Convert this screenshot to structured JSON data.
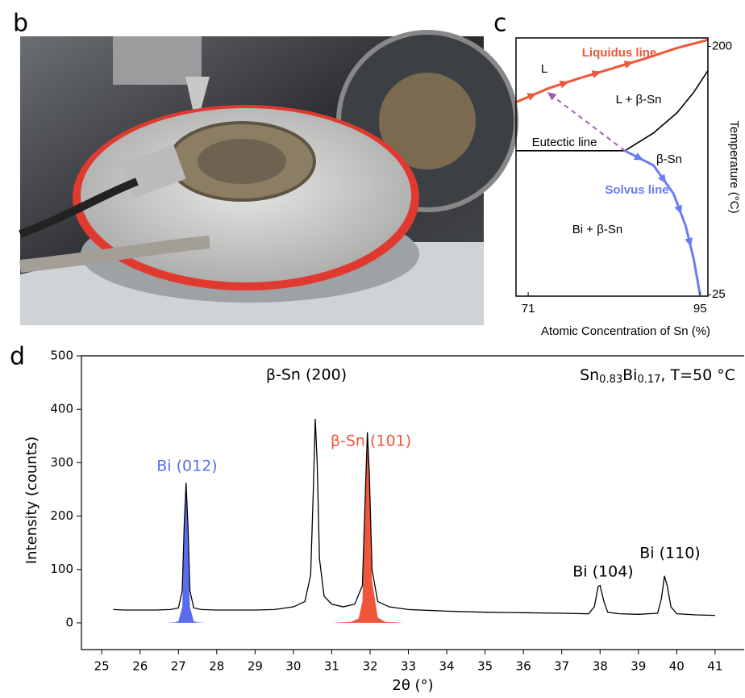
{
  "panel_labels": [
    "b",
    "c",
    "d"
  ],
  "chart_data": [
    {
      "type": "line",
      "xlabel": "Atomic Concentration of Sn (%)",
      "ylabel": "Temperature (°C)",
      "xlim": [
        69.3,
        96.1
      ],
      "ylim": [
        24,
        206
      ],
      "xticks": [
        71,
        95
      ],
      "yticks": [
        25,
        200
      ],
      "regions": [
        "L",
        "L + β-Sn",
        "β-Sn",
        "Bi + β-Sn"
      ],
      "series": [
        {
          "name": "Liquidus line",
          "color": "#f0563a",
          "x": [
            69.3,
            73.8,
            78.3,
            82.8,
            87.3,
            91.8,
            96.1
          ],
          "values": [
            160.7,
            170.4,
            177.8,
            184.6,
            191.4,
            198.9,
            204.6
          ]
        },
        {
          "color": "#000000",
          "x": [
            84.5,
            88.5,
            91.8,
            94.1,
            96.1
          ],
          "values": [
            126.5,
            139.0,
            153.3,
            167.5,
            182.9
          ]
        },
        {
          "name": "Eutectic line",
          "color": "#000000",
          "x": [
            69.3,
            84.5
          ],
          "values": [
            126.5,
            126.5
          ]
        },
        {
          "name": "Solvus line",
          "color": "#6b7cf2",
          "x": [
            84.5,
            88.5,
            91.3,
            93.0,
            94.1,
            95.0
          ],
          "values": [
            126.5,
            116.2,
            96.2,
            73.4,
            50.6,
            25
          ]
        },
        {
          "color": "#a35db8",
          "dashed": true,
          "x": [
            84.5,
            74.2
          ],
          "values": [
            126.5,
            165.8
          ]
        }
      ]
    },
    {
      "type": "line",
      "xlabel": "2θ (°)",
      "ylabel": "Intensity (counts)",
      "xlim": [
        24.47,
        41.76
      ],
      "ylim": [
        -50,
        500
      ],
      "xticks": [
        25,
        26,
        27,
        28,
        29,
        30,
        31,
        32,
        33,
        34,
        35,
        36,
        37,
        38,
        39,
        40,
        41
      ],
      "yticks": [
        0,
        100,
        200,
        300,
        400,
        500
      ],
      "sample_label": [
        "Sn",
        "0.83",
        "Bi",
        "0.17",
        ", T=50 °C"
      ],
      "annotations": [
        {
          "text": "Bi (012)",
          "color": "#5a6cf0"
        },
        {
          "text": "β-Sn (200)",
          "color": "#000000"
        },
        {
          "text": "β-Sn (101)",
          "color": "#f0563a"
        },
        {
          "text": "Bi (104)",
          "color": "#000000"
        },
        {
          "text": "Bi (110)",
          "color": "#000000"
        }
      ],
      "series": [
        {
          "color": "#000000",
          "x": [
            25.3,
            25.6,
            26.0,
            26.4,
            26.8,
            27.0,
            27.1,
            27.15,
            27.2,
            27.25,
            27.3,
            27.4,
            27.6,
            28.0,
            28.5,
            29.0,
            29.5,
            30.0,
            30.3,
            30.45,
            30.52,
            30.57,
            30.62,
            30.68,
            30.8,
            31.0,
            31.3,
            31.6,
            31.8,
            31.88,
            31.93,
            31.98,
            32.05,
            32.2,
            32.5,
            33.0,
            34.0,
            35.0,
            36.0,
            37.0,
            37.7,
            37.85,
            37.95,
            38.0,
            38.1,
            38.2,
            38.5,
            39.0,
            39.5,
            39.6,
            39.68,
            39.75,
            39.85,
            40.0,
            40.5,
            41.0
          ],
          "values": [
            25,
            24,
            24,
            24,
            25,
            28,
            60,
            180,
            262,
            180,
            60,
            28,
            25,
            24,
            24,
            24,
            25,
            30,
            40,
            90,
            250,
            382,
            300,
            120,
            50,
            35,
            30,
            35,
            70,
            250,
            357,
            280,
            100,
            40,
            30,
            25,
            22,
            20,
            19,
            18,
            17,
            30,
            68,
            70,
            40,
            20,
            17,
            16,
            18,
            45,
            88,
            70,
            30,
            17,
            15,
            14
          ]
        }
      ],
      "fills": [
        {
          "color": "#5a6cf0",
          "x": [
            26.7,
            26.9,
            27.0,
            27.1,
            27.15,
            27.2,
            27.25,
            27.3,
            27.4,
            27.5,
            27.7
          ],
          "values": [
            0,
            1,
            3,
            30,
            150,
            260,
            150,
            30,
            3,
            1,
            0
          ]
        },
        {
          "color": "#f0563a",
          "x": [
            31.0,
            31.5,
            31.7,
            31.8,
            31.88,
            31.93,
            31.98,
            32.05,
            32.2,
            32.4,
            32.9
          ],
          "values": [
            0,
            2,
            8,
            40,
            220,
            350,
            260,
            80,
            10,
            2,
            0
          ]
        }
      ]
    }
  ]
}
